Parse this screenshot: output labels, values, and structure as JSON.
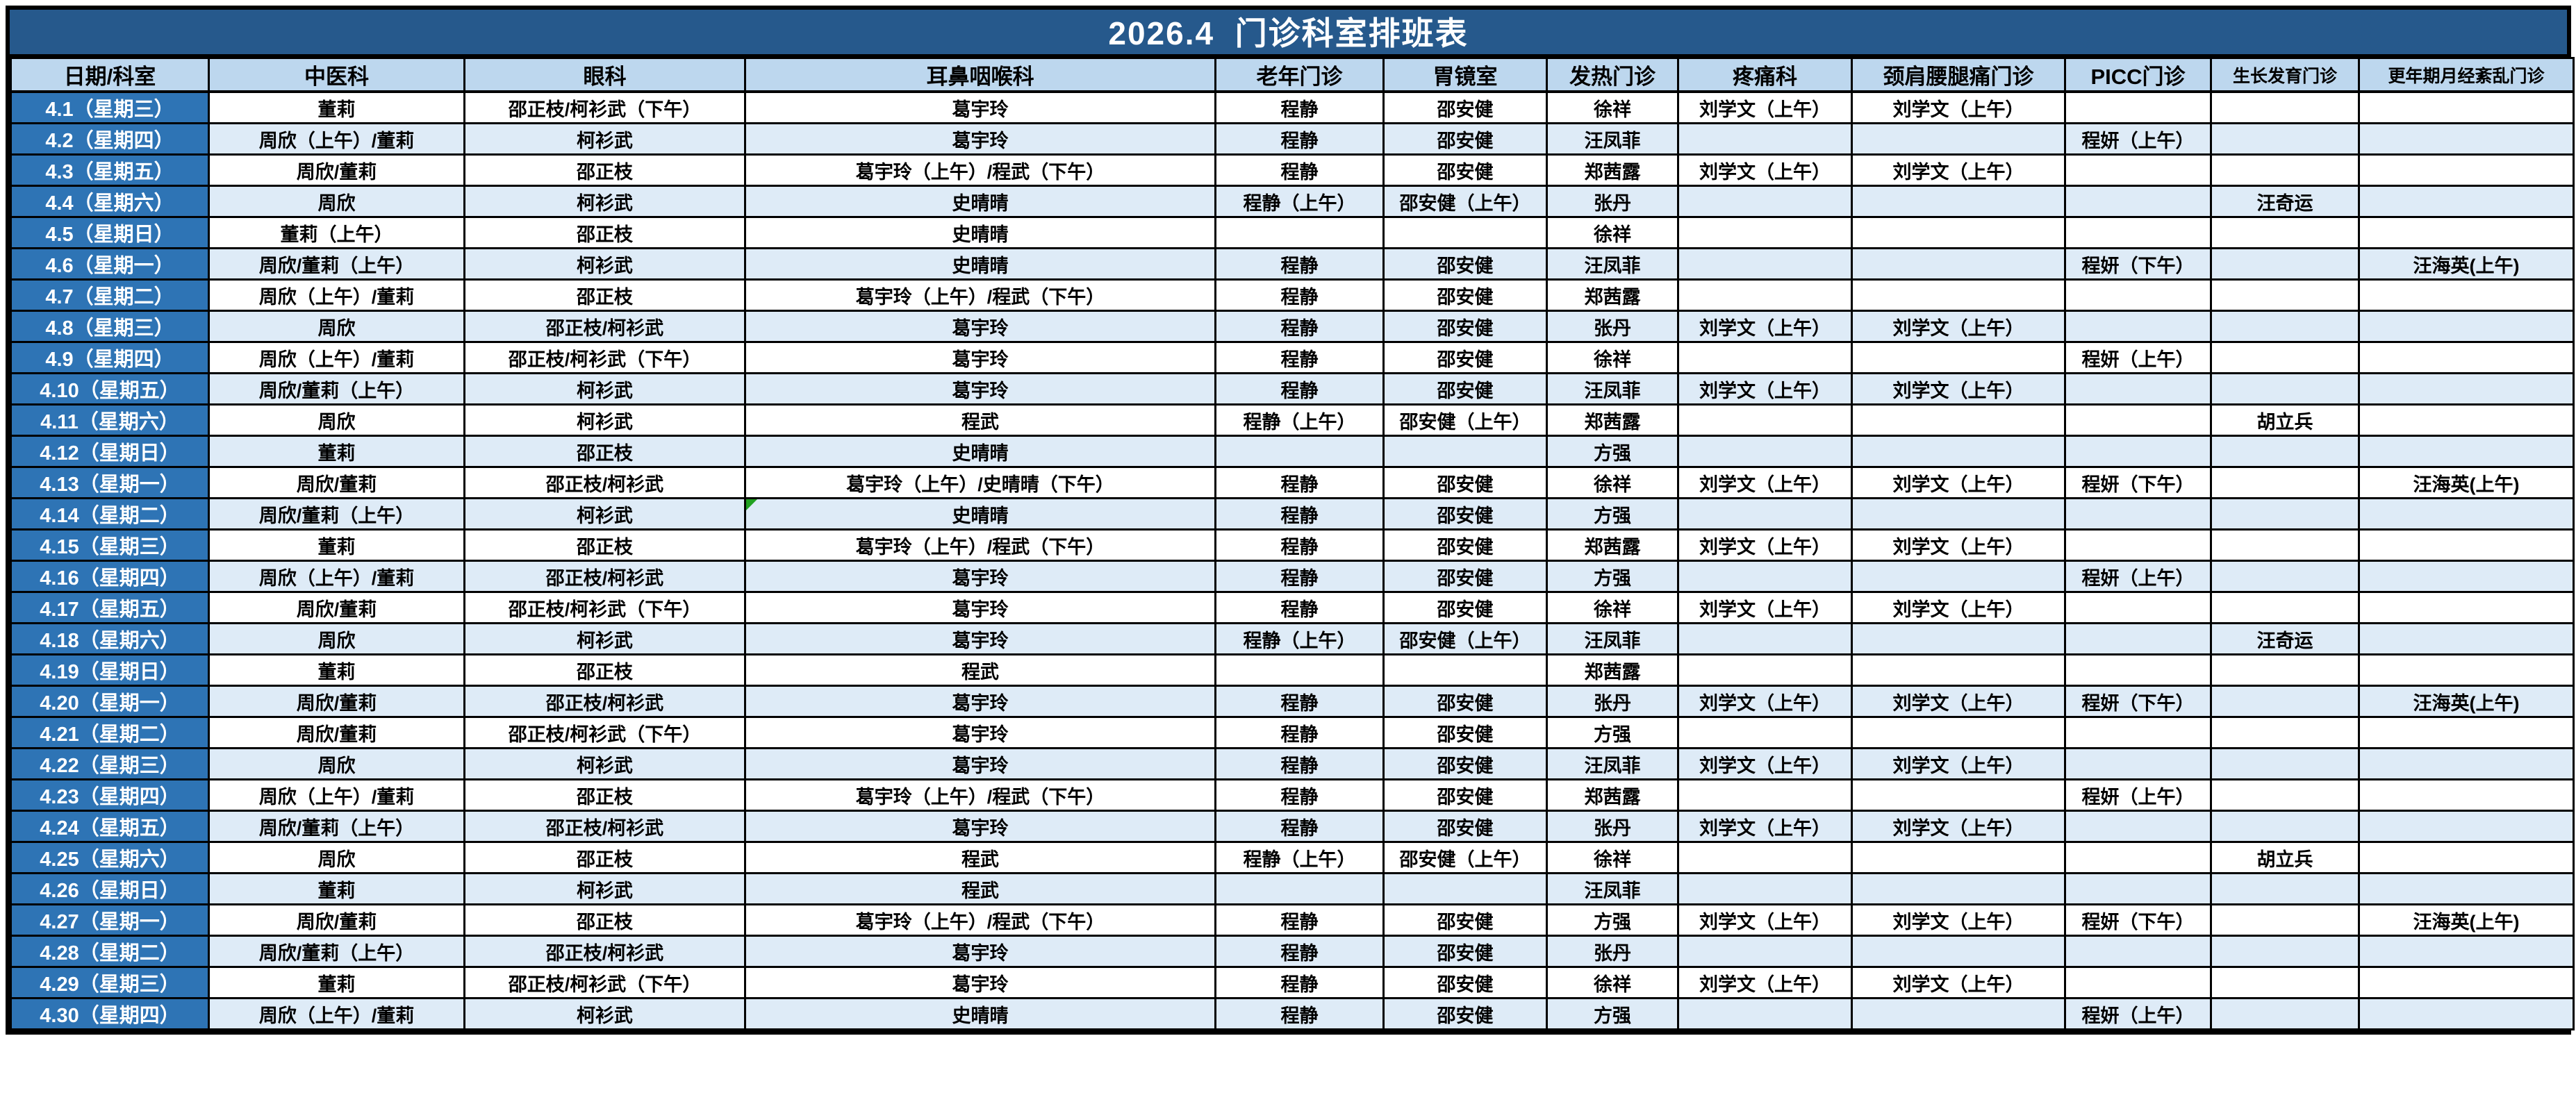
{
  "title": "2026.4  门诊科室排班表",
  "colors": {
    "title_bg": "#26598C",
    "date_col_bg": "#2E74B5",
    "header_bg": "#BDD7EE",
    "row_alt_bg": "#DEEBF7",
    "grid": "#000000",
    "comment_marker": "#21A121"
  },
  "columns": [
    "日期/科室",
    "中医科",
    "眼科",
    "耳鼻咽喉科",
    "老年门诊",
    "胃镜室",
    "发热门诊",
    "疼痛科",
    "颈肩腰腿痛门诊",
    "PICC门诊",
    "生长发育门诊",
    "更年期月经紊乱门诊"
  ],
  "comment_marker": {
    "row_index": 13,
    "col_index": 3,
    "note_indicator": "comment-triangle"
  },
  "rows": [
    {
      "date": "4.1（星期三）",
      "cells": [
        "董莉",
        "邵正枝/柯衫武（下午）",
        "葛宇玲",
        "程静",
        "邵安健",
        "徐祥",
        "刘学文（上午）",
        "刘学文（上午）",
        "",
        "",
        ""
      ]
    },
    {
      "date": "4.2（星期四）",
      "cells": [
        "周欣（上午）/董莉",
        "柯衫武",
        "葛宇玲",
        "程静",
        "邵安健",
        "汪凤菲",
        "",
        "",
        "程妍（上午）",
        "",
        ""
      ]
    },
    {
      "date": "4.3（星期五）",
      "cells": [
        "周欣/董莉",
        "邵正枝",
        "葛宇玲（上午）/程武（下午）",
        "程静",
        "邵安健",
        "郑茜露",
        "刘学文（上午）",
        "刘学文（上午）",
        "",
        "",
        ""
      ]
    },
    {
      "date": "4.4（星期六）",
      "cells": [
        "周欣",
        "柯衫武",
        "史晴晴",
        "程静（上午）",
        "邵安健（上午）",
        "张丹",
        "",
        "",
        "",
        "汪奇运",
        ""
      ]
    },
    {
      "date": "4.5（星期日）",
      "cells": [
        "董莉（上午）",
        "邵正枝",
        "史晴晴",
        "",
        "",
        "徐祥",
        "",
        "",
        "",
        "",
        ""
      ]
    },
    {
      "date": "4.6（星期一）",
      "cells": [
        "周欣/董莉（上午）",
        "柯衫武",
        "史晴晴",
        "程静",
        "邵安健",
        "汪凤菲",
        "",
        "",
        "程妍（下午）",
        "",
        "汪海英(上午)"
      ]
    },
    {
      "date": "4.7（星期二）",
      "cells": [
        "周欣（上午）/董莉",
        "邵正枝",
        "葛宇玲（上午）/程武（下午）",
        "程静",
        "邵安健",
        "郑茜露",
        "",
        "",
        "",
        "",
        ""
      ]
    },
    {
      "date": "4.8（星期三）",
      "cells": [
        "周欣",
        "邵正枝/柯衫武",
        "葛宇玲",
        "程静",
        "邵安健",
        "张丹",
        "刘学文（上午）",
        "刘学文（上午）",
        "",
        "",
        ""
      ]
    },
    {
      "date": "4.9（星期四）",
      "cells": [
        "周欣（上午）/董莉",
        "邵正枝/柯衫武（下午）",
        "葛宇玲",
        "程静",
        "邵安健",
        "徐祥",
        "",
        "",
        "程妍（上午）",
        "",
        ""
      ]
    },
    {
      "date": "4.10（星期五）",
      "cells": [
        "周欣/董莉（上午）",
        "柯衫武",
        "葛宇玲",
        "程静",
        "邵安健",
        "汪凤菲",
        "刘学文（上午）",
        "刘学文（上午）",
        "",
        "",
        ""
      ]
    },
    {
      "date": "4.11（星期六）",
      "cells": [
        "周欣",
        "柯衫武",
        "程武",
        "程静（上午）",
        "邵安健（上午）",
        "郑茜露",
        "",
        "",
        "",
        "胡立兵",
        ""
      ]
    },
    {
      "date": "4.12（星期日）",
      "cells": [
        "董莉",
        "邵正枝",
        "史晴晴",
        "",
        "",
        "方强",
        "",
        "",
        "",
        "",
        ""
      ]
    },
    {
      "date": "4.13（星期一）",
      "cells": [
        "周欣/董莉",
        "邵正枝/柯衫武",
        "葛宇玲（上午）/史晴晴（下午）",
        "程静",
        "邵安健",
        "徐祥",
        "刘学文（上午）",
        "刘学文（上午）",
        "程妍（下午）",
        "",
        "汪海英(上午)"
      ]
    },
    {
      "date": "4.14（星期二）",
      "cells": [
        "周欣/董莉（上午）",
        "柯衫武",
        "史晴晴",
        "程静",
        "邵安健",
        "方强",
        "",
        "",
        "",
        "",
        ""
      ]
    },
    {
      "date": "4.15（星期三）",
      "cells": [
        "董莉",
        "邵正枝",
        "葛宇玲（上午）/程武（下午）",
        "程静",
        "邵安健",
        "郑茜露",
        "刘学文（上午）",
        "刘学文（上午）",
        "",
        "",
        ""
      ]
    },
    {
      "date": "4.16（星期四）",
      "cells": [
        "周欣（上午）/董莉",
        "邵正枝/柯衫武",
        "葛宇玲",
        "程静",
        "邵安健",
        "方强",
        "",
        "",
        "程妍（上午）",
        "",
        ""
      ]
    },
    {
      "date": "4.17（星期五）",
      "cells": [
        "周欣/董莉",
        "邵正枝/柯衫武（下午）",
        "葛宇玲",
        "程静",
        "邵安健",
        "徐祥",
        "刘学文（上午）",
        "刘学文（上午）",
        "",
        "",
        ""
      ]
    },
    {
      "date": "4.18（星期六）",
      "cells": [
        "周欣",
        "柯衫武",
        "葛宇玲",
        "程静（上午）",
        "邵安健（上午）",
        "汪凤菲",
        "",
        "",
        "",
        "汪奇运",
        ""
      ]
    },
    {
      "date": "4.19（星期日）",
      "cells": [
        "董莉",
        "邵正枝",
        "程武",
        "",
        "",
        "郑茜露",
        "",
        "",
        "",
        "",
        ""
      ]
    },
    {
      "date": "4.20（星期一）",
      "cells": [
        "周欣/董莉",
        "邵正枝/柯衫武",
        "葛宇玲",
        "程静",
        "邵安健",
        "张丹",
        "刘学文（上午）",
        "刘学文（上午）",
        "程妍（下午）",
        "",
        "汪海英(上午)"
      ]
    },
    {
      "date": "4.21（星期二）",
      "cells": [
        "周欣/董莉",
        "邵正枝/柯衫武（下午）",
        "葛宇玲",
        "程静",
        "邵安健",
        "方强",
        "",
        "",
        "",
        "",
        ""
      ]
    },
    {
      "date": "4.22（星期三）",
      "cells": [
        "周欣",
        "柯衫武",
        "葛宇玲",
        "程静",
        "邵安健",
        "汪凤菲",
        "刘学文（上午）",
        "刘学文（上午）",
        "",
        "",
        ""
      ]
    },
    {
      "date": "4.23（星期四）",
      "cells": [
        "周欣（上午）/董莉",
        "邵正枝",
        "葛宇玲（上午）/程武（下午）",
        "程静",
        "邵安健",
        "郑茜露",
        "",
        "",
        "程妍（上午）",
        "",
        ""
      ]
    },
    {
      "date": "4.24（星期五）",
      "cells": [
        "周欣/董莉（上午）",
        "邵正枝/柯衫武",
        "葛宇玲",
        "程静",
        "邵安健",
        "张丹",
        "刘学文（上午）",
        "刘学文（上午）",
        "",
        "",
        ""
      ]
    },
    {
      "date": "4.25（星期六）",
      "cells": [
        "周欣",
        "邵正枝",
        "程武",
        "程静（上午）",
        "邵安健（上午）",
        "徐祥",
        "",
        "",
        "",
        "胡立兵",
        ""
      ]
    },
    {
      "date": "4.26（星期日）",
      "cells": [
        "董莉",
        "柯衫武",
        "程武",
        "",
        "",
        "汪凤菲",
        "",
        "",
        "",
        "",
        ""
      ]
    },
    {
      "date": "4.27（星期一）",
      "cells": [
        "周欣/董莉",
        "邵正枝",
        "葛宇玲（上午）/程武（下午）",
        "程静",
        "邵安健",
        "方强",
        "刘学文（上午）",
        "刘学文（上午）",
        "程妍（下午）",
        "",
        "汪海英(上午)"
      ]
    },
    {
      "date": "4.28（星期二）",
      "cells": [
        "周欣/董莉（上午）",
        "邵正枝/柯衫武",
        "葛宇玲",
        "程静",
        "邵安健",
        "张丹",
        "",
        "",
        "",
        "",
        ""
      ]
    },
    {
      "date": "4.29（星期三）",
      "cells": [
        "董莉",
        "邵正枝/柯衫武（下午）",
        "葛宇玲",
        "程静",
        "邵安健",
        "徐祥",
        "刘学文（上午）",
        "刘学文（上午）",
        "",
        "",
        ""
      ]
    },
    {
      "date": "4.30（星期四）",
      "cells": [
        "周欣（上午）/董莉",
        "柯衫武",
        "史晴晴",
        "程静",
        "邵安健",
        "方强",
        "",
        "",
        "程妍（上午）",
        "",
        ""
      ]
    }
  ]
}
